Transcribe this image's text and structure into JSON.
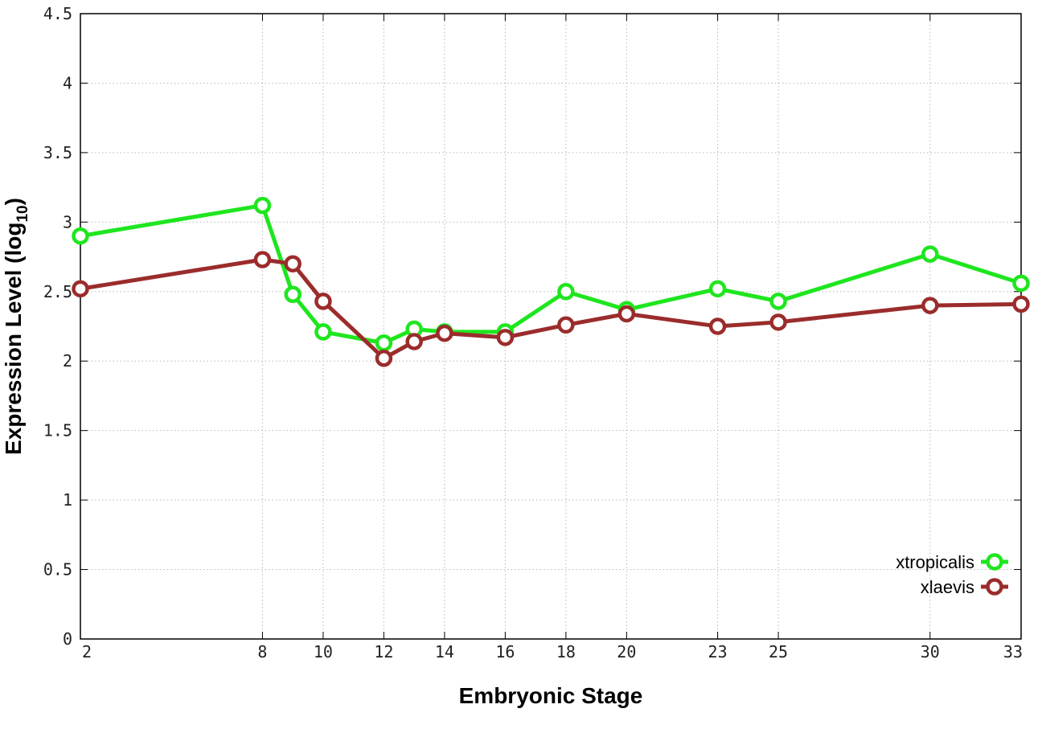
{
  "chart_data": {
    "type": "line",
    "xlabel": "Embryonic Stage",
    "ylabel": "Expression Level (log",
    "ylabel_subscript": "10",
    "ylabel_close": ")",
    "x": [
      2,
      8,
      9,
      10,
      12,
      13,
      14,
      16,
      18,
      20,
      23,
      25,
      30,
      33
    ],
    "xticks": [
      2,
      8,
      10,
      12,
      14,
      16,
      18,
      20,
      23,
      25,
      30,
      33
    ],
    "xlim": [
      2,
      33
    ],
    "yticks": [
      "0",
      "0.5",
      "1",
      "1.5",
      "2",
      "2.5",
      "3",
      "3.5",
      "4",
      "4.5"
    ],
    "ylim": [
      0,
      4.5
    ],
    "grid": true,
    "legend_position": "bottom-right",
    "series": [
      {
        "name": "xtropicalis",
        "color": "#1ee61e",
        "values": [
          2.9,
          3.12,
          2.48,
          2.21,
          2.13,
          2.23,
          2.21,
          2.21,
          2.5,
          2.37,
          2.52,
          2.43,
          2.77,
          2.56
        ]
      },
      {
        "name": "xlaevis",
        "color": "#9b2c2c",
        "values": [
          2.52,
          2.73,
          2.7,
          2.43,
          2.02,
          2.14,
          2.2,
          2.17,
          2.26,
          2.34,
          2.25,
          2.28,
          2.4,
          2.41
        ]
      }
    ]
  }
}
